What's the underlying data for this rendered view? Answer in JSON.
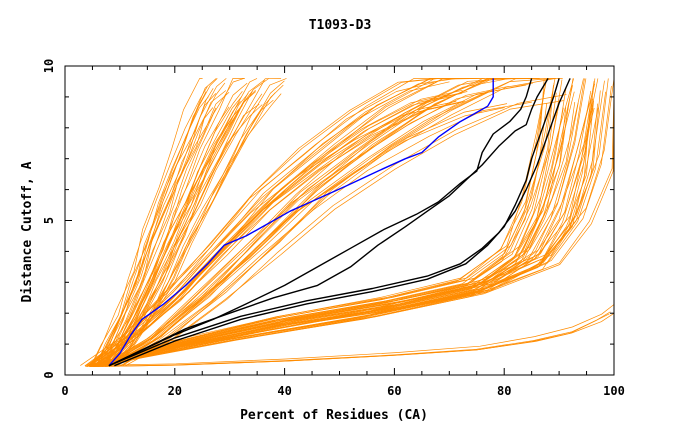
{
  "chart_data": {
    "type": "line",
    "title": "T1093-D3",
    "xlabel": "Percent of Residues (CA)",
    "ylabel": "Distance Cutoff, A",
    "xlim": [
      0,
      100
    ],
    "ylim": [
      0,
      10
    ],
    "x_ticks": [
      "0",
      "20",
      "40",
      "60",
      "80",
      "100"
    ],
    "y_ticks": [
      "0",
      "5",
      "10"
    ],
    "grid": false,
    "legend": "none",
    "colors": {
      "models": "#ff8c00",
      "highlight_blue": "#0000ff",
      "highlight_black": "#000000"
    },
    "model_groups": [
      {
        "name": "",
        "count": 40,
        "start": [
          7,
          0.3
        ],
        "spread_x": 15,
        "path": [
          [
            7,
            0.3
          ],
          [
            10,
            1.0
          ],
          [
            13,
            2.0
          ],
          [
            16,
            3.2
          ],
          [
            19,
            4.5
          ],
          [
            22,
            5.8
          ],
          [
            25,
            7.0
          ],
          [
            28,
            8.2
          ],
          [
            31,
            9.2
          ],
          [
            33,
            9.6
          ]
        ]
      },
      {
        "name": "",
        "count": 40,
        "start": [
          7,
          0.3
        ],
        "spread_x": 25,
        "path": [
          [
            7,
            0.3
          ],
          [
            15,
            1.2
          ],
          [
            24,
            2.6
          ],
          [
            33,
            4.2
          ],
          [
            42,
            5.8
          ],
          [
            52,
            7.2
          ],
          [
            62,
            8.4
          ],
          [
            72,
            9.3
          ],
          [
            80,
            9.6
          ]
        ]
      },
      {
        "name": "",
        "count": 30,
        "start": [
          6,
          0.3
        ],
        "spread_x": 10,
        "path": [
          [
            6,
            0.3
          ],
          [
            20,
            1.0
          ],
          [
            40,
            1.8
          ],
          [
            60,
            2.4
          ],
          [
            75,
            3.0
          ],
          [
            83,
            4.0
          ],
          [
            87,
            5.5
          ],
          [
            90,
            7.5
          ],
          [
            92,
            9.6
          ]
        ]
      },
      {
        "name": "",
        "count": 15,
        "start": [
          5,
          0.3
        ],
        "spread_x": 8,
        "path": [
          [
            5,
            0.3
          ],
          [
            30,
            1.2
          ],
          [
            55,
            2.0
          ],
          [
            75,
            2.8
          ],
          [
            88,
            3.8
          ],
          [
            94,
            5.2
          ],
          [
            97,
            7.0
          ],
          [
            99,
            9.6
          ]
        ]
      },
      {
        "name": "",
        "count": 4,
        "start": [
          5,
          0.3
        ],
        "spread_x": 2,
        "path": [
          [
            5,
            0.3
          ],
          [
            20,
            0.35
          ],
          [
            40,
            0.5
          ],
          [
            60,
            0.7
          ],
          [
            75,
            0.9
          ],
          [
            85,
            1.2
          ],
          [
            92,
            1.5
          ],
          [
            97,
            1.9
          ],
          [
            100,
            2.2
          ]
        ]
      }
    ],
    "series": [
      {
        "name": "",
        "color": "#0000ff",
        "points": [
          [
            8,
            0.3
          ],
          [
            10,
            0.7
          ],
          [
            12,
            1.3
          ],
          [
            14,
            1.8
          ],
          [
            18,
            2.3
          ],
          [
            22,
            2.9
          ],
          [
            26,
            3.6
          ],
          [
            29,
            4.2
          ],
          [
            33,
            4.5
          ],
          [
            37,
            4.9
          ],
          [
            41,
            5.3
          ],
          [
            46,
            5.7
          ],
          [
            51,
            6.1
          ],
          [
            57,
            6.6
          ],
          [
            62,
            7.0
          ],
          [
            65,
            7.2
          ],
          [
            68,
            7.7
          ],
          [
            72,
            8.2
          ],
          [
            75,
            8.5
          ],
          [
            77,
            8.7
          ],
          [
            78,
            9.0
          ],
          [
            78,
            9.6
          ]
        ]
      },
      {
        "name": "",
        "color": "#000000",
        "points": [
          [
            8,
            0.3
          ],
          [
            14,
            0.8
          ],
          [
            20,
            1.3
          ],
          [
            27,
            1.8
          ],
          [
            33,
            2.3
          ],
          [
            40,
            2.9
          ],
          [
            46,
            3.5
          ],
          [
            52,
            4.1
          ],
          [
            58,
            4.7
          ],
          [
            64,
            5.2
          ],
          [
            68,
            5.6
          ],
          [
            72,
            6.2
          ],
          [
            75,
            6.6
          ],
          [
            76,
            7.2
          ],
          [
            78,
            7.8
          ],
          [
            81,
            8.2
          ],
          [
            83,
            8.6
          ],
          [
            84,
            9.0
          ],
          [
            85,
            9.6
          ]
        ]
      },
      {
        "name": "",
        "color": "#000000",
        "points": [
          [
            8,
            0.3
          ],
          [
            15,
            0.9
          ],
          [
            22,
            1.5
          ],
          [
            30,
            2.0
          ],
          [
            38,
            2.5
          ],
          [
            46,
            2.9
          ],
          [
            52,
            3.5
          ],
          [
            57,
            4.2
          ],
          [
            62,
            4.8
          ],
          [
            66,
            5.3
          ],
          [
            70,
            5.8
          ],
          [
            73,
            6.3
          ],
          [
            76,
            6.8
          ],
          [
            79,
            7.4
          ],
          [
            82,
            7.9
          ],
          [
            84,
            8.1
          ],
          [
            85,
            8.6
          ],
          [
            86,
            9.0
          ],
          [
            88,
            9.6
          ]
        ]
      },
      {
        "name": "",
        "color": "#000000",
        "points": [
          [
            8,
            0.3
          ],
          [
            20,
            1.2
          ],
          [
            32,
            1.9
          ],
          [
            44,
            2.4
          ],
          [
            56,
            2.8
          ],
          [
            66,
            3.2
          ],
          [
            72,
            3.6
          ],
          [
            76,
            4.1
          ],
          [
            79,
            4.6
          ],
          [
            82,
            5.3
          ],
          [
            84,
            6.0
          ],
          [
            86,
            6.8
          ],
          [
            88,
            7.8
          ],
          [
            90,
            8.8
          ],
          [
            92,
            9.6
          ]
        ]
      },
      {
        "name": "",
        "color": "#000000",
        "points": [
          [
            9,
            0.3
          ],
          [
            20,
            1.1
          ],
          [
            32,
            1.8
          ],
          [
            44,
            2.3
          ],
          [
            56,
            2.7
          ],
          [
            66,
            3.1
          ],
          [
            73,
            3.6
          ],
          [
            77,
            4.2
          ],
          [
            80,
            4.8
          ],
          [
            82,
            5.5
          ],
          [
            84,
            6.3
          ],
          [
            85,
            7.0
          ],
          [
            87,
            8.0
          ],
          [
            89,
            9.0
          ],
          [
            90,
            9.6
          ]
        ]
      }
    ]
  }
}
